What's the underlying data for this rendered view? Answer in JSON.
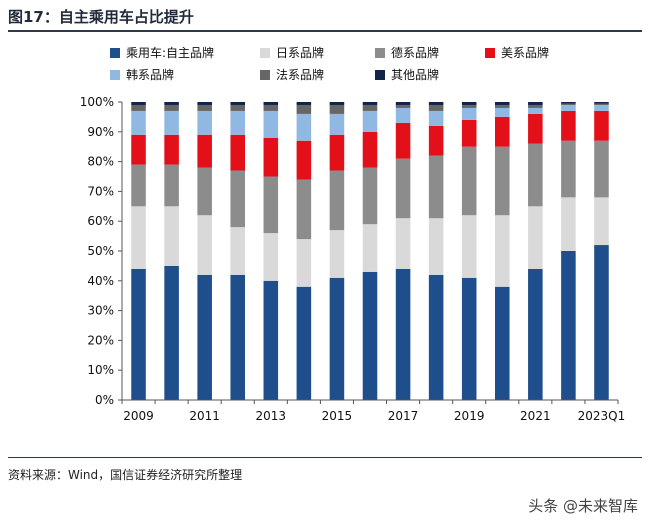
{
  "header": {
    "title": "图17：自主乘用车占比提升"
  },
  "footer": {
    "source": "资料来源：Wind，国信证券经济研究所整理",
    "watermark": "头条 @未来智库"
  },
  "chart_data": {
    "type": "bar",
    "stacked": true,
    "categories": [
      "2009",
      "2010",
      "2011",
      "2012",
      "2013",
      "2014",
      "2015",
      "2016",
      "2017",
      "2018",
      "2019",
      "2020",
      "2021",
      "2022",
      "2023Q1"
    ],
    "x_tick_labels": [
      "2009",
      "2011",
      "2013",
      "2015",
      "2017",
      "2019",
      "2021",
      "2023Q1"
    ],
    "ylim": [
      0,
      100
    ],
    "y_tick_labels": [
      "0%",
      "10%",
      "20%",
      "30%",
      "40%",
      "50%",
      "60%",
      "70%",
      "80%",
      "90%",
      "100%"
    ],
    "series": [
      {
        "name": "乘用车:自主品牌",
        "color": "#1f4e8c",
        "values": [
          44,
          45,
          42,
          42,
          40,
          38,
          41,
          43,
          44,
          42,
          41,
          38,
          44,
          50,
          52
        ]
      },
      {
        "name": "日系品牌",
        "color": "#d9d9d9",
        "values": [
          21,
          20,
          20,
          16,
          16,
          16,
          16,
          16,
          17,
          19,
          21,
          24,
          21,
          18,
          16
        ]
      },
      {
        "name": "德系品牌",
        "color": "#8c8c8c",
        "values": [
          14,
          14,
          16,
          19,
          19,
          20,
          20,
          19,
          20,
          21,
          23,
          23,
          21,
          19,
          19
        ]
      },
      {
        "name": "美系品牌",
        "color": "#e3101a",
        "values": [
          10,
          10,
          11,
          12,
          13,
          13,
          12,
          12,
          12,
          10,
          9,
          10,
          10,
          10,
          10
        ]
      },
      {
        "name": "韩系品牌",
        "color": "#8fb8e3",
        "values": [
          8,
          8,
          8,
          8,
          9,
          9,
          7,
          7,
          5,
          5,
          4,
          3,
          2,
          2,
          2
        ]
      },
      {
        "name": "法系品牌",
        "color": "#666666",
        "values": [
          2,
          2,
          2,
          2,
          2,
          3,
          3,
          2,
          1,
          2,
          1,
          1,
          1,
          0.5,
          0.5
        ]
      },
      {
        "name": "其他品牌",
        "color": "#14234a",
        "values": [
          1,
          1,
          1,
          1,
          1,
          1,
          1,
          1,
          1,
          1,
          1,
          1,
          1,
          0.5,
          0.5
        ]
      }
    ],
    "legend_position": "top",
    "grid": false
  }
}
